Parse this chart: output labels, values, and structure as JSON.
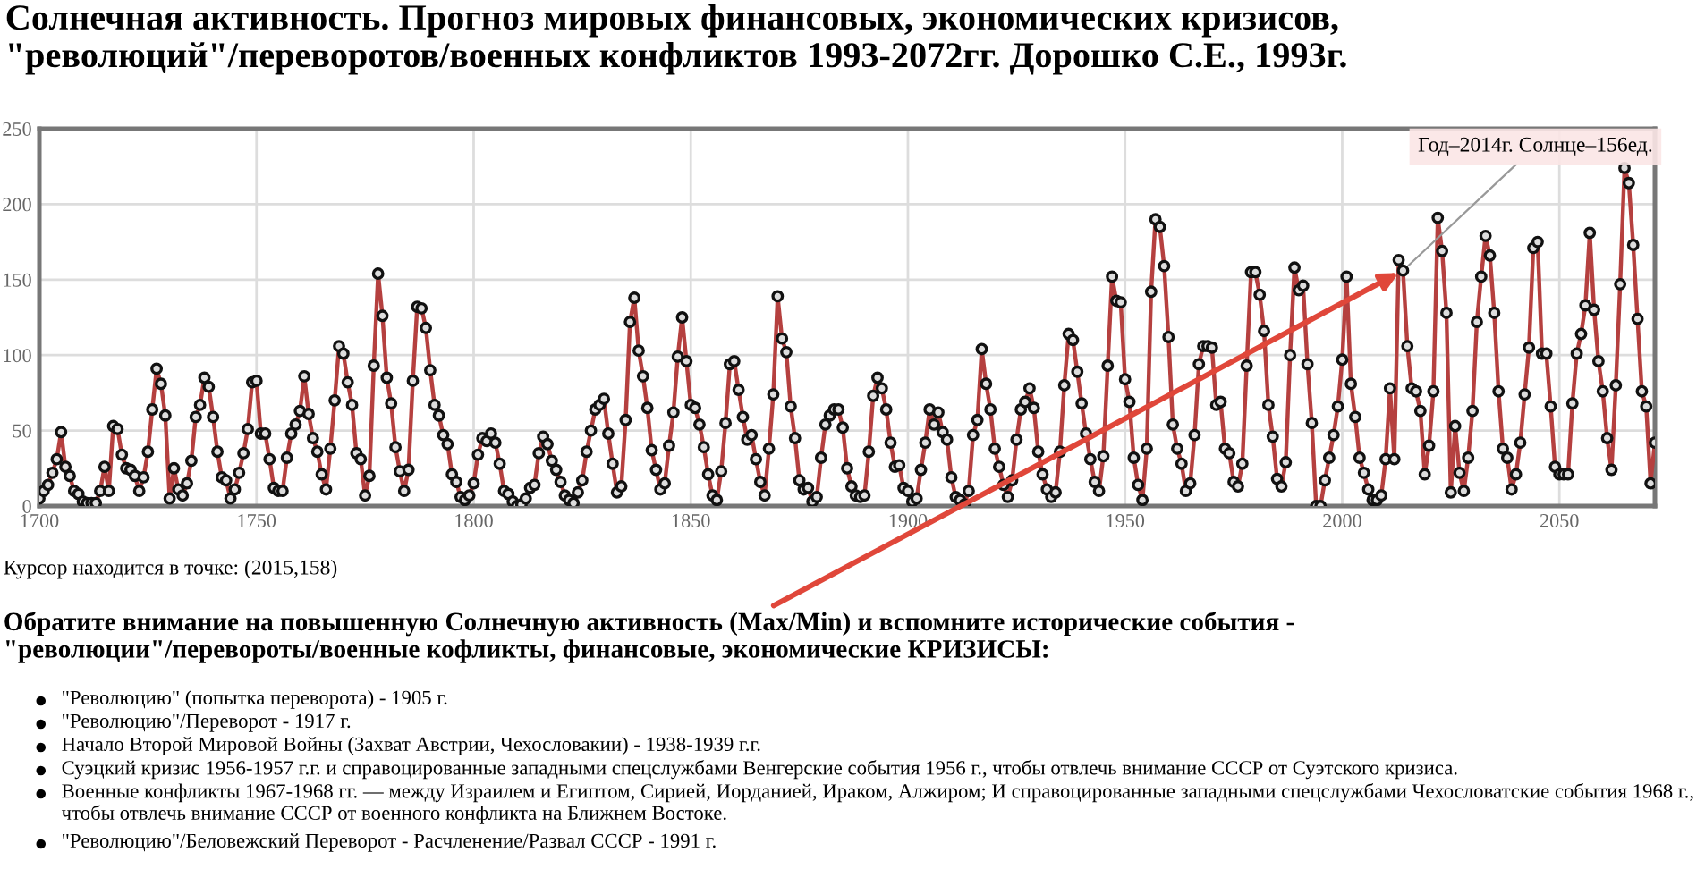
{
  "chart_data": {
    "type": "line",
    "title": "Солнечная активность. Прогноз мировых финансовых, экономических кризисов, \"революций\"/переворотов/военных конфликтов 1993-2072гг. Дорошко С.Е., 1993г.",
    "x": [
      1700,
      1701,
      1702,
      1703,
      1704,
      1705,
      1706,
      1707,
      1708,
      1709,
      1710,
      1711,
      1712,
      1713,
      1714,
      1715,
      1716,
      1717,
      1718,
      1719,
      1720,
      1721,
      1722,
      1723,
      1724,
      1725,
      1726,
      1727,
      1728,
      1729,
      1730,
      1731,
      1732,
      1733,
      1734,
      1735,
      1736,
      1737,
      1738,
      1739,
      1740,
      1741,
      1742,
      1743,
      1744,
      1745,
      1746,
      1747,
      1748,
      1749,
      1750,
      1751,
      1752,
      1753,
      1754,
      1755,
      1756,
      1757,
      1758,
      1759,
      1760,
      1761,
      1762,
      1763,
      1764,
      1765,
      1766,
      1767,
      1768,
      1769,
      1770,
      1771,
      1772,
      1773,
      1774,
      1775,
      1776,
      1777,
      1778,
      1779,
      1780,
      1781,
      1782,
      1783,
      1784,
      1785,
      1786,
      1787,
      1788,
      1789,
      1790,
      1791,
      1792,
      1793,
      1794,
      1795,
      1796,
      1797,
      1798,
      1799,
      1800,
      1801,
      1802,
      1803,
      1804,
      1805,
      1806,
      1807,
      1808,
      1809,
      1810,
      1811,
      1812,
      1813,
      1814,
      1815,
      1816,
      1817,
      1818,
      1819,
      1820,
      1821,
      1822,
      1823,
      1824,
      1825,
      1826,
      1827,
      1828,
      1829,
      1830,
      1831,
      1832,
      1833,
      1834,
      1835,
      1836,
      1837,
      1838,
      1839,
      1840,
      1841,
      1842,
      1843,
      1844,
      1845,
      1846,
      1847,
      1848,
      1849,
      1850,
      1851,
      1852,
      1853,
      1854,
      1855,
      1856,
      1857,
      1858,
      1859,
      1860,
      1861,
      1862,
      1863,
      1864,
      1865,
      1866,
      1867,
      1868,
      1869,
      1870,
      1871,
      1872,
      1873,
      1874,
      1875,
      1876,
      1877,
      1878,
      1879,
      1880,
      1881,
      1882,
      1883,
      1884,
      1885,
      1886,
      1887,
      1888,
      1889,
      1890,
      1891,
      1892,
      1893,
      1894,
      1895,
      1896,
      1897,
      1898,
      1899,
      1900,
      1901,
      1902,
      1903,
      1904,
      1905,
      1906,
      1907,
      1908,
      1909,
      1910,
      1911,
      1912,
      1913,
      1914,
      1915,
      1916,
      1917,
      1918,
      1919,
      1920,
      1921,
      1922,
      1923,
      1924,
      1925,
      1926,
      1927,
      1928,
      1929,
      1930,
      1931,
      1932,
      1933,
      1934,
      1935,
      1936,
      1937,
      1938,
      1939,
      1940,
      1941,
      1942,
      1943,
      1944,
      1945,
      1946,
      1947,
      1948,
      1949,
      1950,
      1951,
      1952,
      1953,
      1954,
      1955,
      1956,
      1957,
      1958,
      1959,
      1960,
      1961,
      1962,
      1963,
      1964,
      1965,
      1966,
      1967,
      1968,
      1969,
      1970,
      1971,
      1972,
      1973,
      1974,
      1975,
      1976,
      1977,
      1978,
      1979,
      1980,
      1981,
      1982,
      1983,
      1984,
      1985,
      1986,
      1987,
      1988,
      1989,
      1990,
      1991,
      1992,
      1993,
      1994,
      1995,
      1996,
      1997,
      1998,
      1999,
      2000,
      2001,
      2002,
      2003,
      2004,
      2005,
      2006,
      2007,
      2008,
      2009,
      2010,
      2011,
      2012,
      2013,
      2014,
      2015,
      2016,
      2017,
      2018,
      2019,
      2020,
      2021,
      2022,
      2023,
      2024,
      2025,
      2026,
      2027,
      2028,
      2029,
      2030,
      2031,
      2032,
      2033,
      2034,
      2035,
      2036,
      2037,
      2038,
      2039,
      2040,
      2041,
      2042,
      2043,
      2044,
      2045,
      2046,
      2047,
      2048,
      2049,
      2050,
      2051,
      2052,
      2053,
      2054,
      2055,
      2056,
      2057,
      2058,
      2059,
      2060,
      2061,
      2062,
      2063,
      2064,
      2065,
      2066,
      2067,
      2068,
      2069,
      2070,
      2071,
      2072
    ],
    "series": [
      {
        "color": "#b5403f",
        "values": [
          5,
          10,
          14,
          22,
          31,
          49,
          26,
          20,
          10,
          8,
          3,
          2,
          2,
          2,
          10,
          26,
          10,
          53,
          51,
          34,
          25,
          24,
          20,
          10,
          19,
          36,
          64,
          91,
          81,
          60,
          5,
          25,
          11,
          7,
          15,
          30,
          59,
          67,
          85,
          79,
          59,
          36,
          19,
          17,
          5,
          11,
          22,
          35,
          51,
          82,
          83,
          48,
          48,
          31,
          12,
          10,
          10,
          32,
          48,
          54,
          63,
          86,
          61,
          45,
          36,
          21,
          11,
          38,
          70,
          106,
          101,
          82,
          67,
          35,
          31,
          7,
          20,
          93,
          154,
          126,
          85,
          68,
          39,
          23,
          10,
          24,
          83,
          132,
          131,
          118,
          90,
          67,
          60,
          47,
          41,
          21,
          16,
          6,
          4,
          7,
          15,
          34,
          45,
          43,
          48,
          42,
          28,
          10,
          8,
          3,
          0,
          1,
          5,
          12,
          14,
          35,
          46,
          41,
          30,
          24,
          16,
          7,
          4,
          2,
          9,
          17,
          36,
          50,
          64,
          67,
          71,
          48,
          28,
          9,
          13,
          57,
          122,
          138,
          103,
          86,
          65,
          37,
          24,
          11,
          15,
          40,
          62,
          99,
          125,
          96,
          67,
          65,
          54,
          39,
          21,
          7,
          4,
          23,
          55,
          94,
          96,
          77,
          59,
          44,
          47,
          31,
          16,
          7,
          38,
          74,
          139,
          111,
          102,
          66,
          45,
          17,
          11,
          12,
          3,
          6,
          32,
          54,
          60,
          64,
          64,
          52,
          25,
          13,
          7,
          6,
          7,
          36,
          73,
          85,
          78,
          64,
          42,
          26,
          27,
          12,
          10,
          3,
          5,
          24,
          42,
          64,
          54,
          62,
          49,
          44,
          19,
          6,
          4,
          1,
          10,
          47,
          57,
          104,
          81,
          64,
          38,
          26,
          14,
          6,
          17,
          44,
          64,
          69,
          78,
          65,
          36,
          21,
          11,
          6,
          9,
          36,
          80,
          114,
          110,
          89,
          68,
          48,
          31,
          16,
          10,
          33,
          93,
          152,
          136,
          135,
          84,
          69,
          32,
          14,
          4,
          38,
          142,
          190,
          185,
          159,
          112,
          54,
          38,
          28,
          10,
          15,
          47,
          94,
          106,
          106,
          105,
          67,
          69,
          38,
          35,
          16,
          13,
          28,
          93,
          155,
          155,
          140,
          116,
          67,
          46,
          18,
          13,
          29,
          100,
          158,
          143,
          146,
          94,
          55,
          0,
          0,
          17,
          32,
          47,
          66,
          97,
          152,
          81,
          59,
          32,
          22,
          11,
          4,
          4,
          7,
          31,
          78,
          31,
          163,
          156,
          106,
          78,
          76,
          63,
          21,
          40,
          76,
          191,
          169,
          128,
          9,
          53,
          22,
          10,
          32,
          63,
          122,
          152,
          179,
          166,
          128,
          76,
          38,
          32,
          11,
          21,
          42,
          74,
          105,
          171,
          175,
          101,
          101,
          66,
          26,
          21,
          21,
          21,
          68,
          101,
          114,
          133,
          181,
          130,
          96,
          76,
          45,
          24,
          80,
          147,
          224,
          214,
          173,
          124,
          76,
          66,
          15,
          42
        ]
      }
    ],
    "xlim": [
      1700,
      2072
    ],
    "ylim": [
      0,
      250
    ],
    "xticks": [
      1700,
      1750,
      1800,
      1850,
      1900,
      1950,
      2000,
      2050
    ],
    "yticks": [
      0,
      50,
      100,
      150,
      200,
      250
    ],
    "grid": true,
    "marker": "circle",
    "line_style": "solid",
    "annotations": [
      {
        "text": "Год–2014г. Солнце–156ед.",
        "x": 2014,
        "y": 156
      },
      "Курсор находится в точке: (2015,158)",
      "Обратите внимание на повышенную Солнечную активность (Max/Min) и вспомните исторические события - \"революции\"/перевороты/военные кофликты, финансовые, экономические КРИЗИСЫ:",
      "\"Революцию\" (попытка переворота) - 1905 г.",
      "\"Революцию\"/Переворот - 1917 г.",
      "Начало Второй Мировой Войны (Захват Австрии, Чехословакии) - 1938-1939 г.г.",
      "Суэцкий кризис 1956-1957 г.г. и справоцированные западными спецслужбами Венгерские события 1956 г., чтобы отвлечь внимание СССР от Суэтского кризиса.",
      "Военные конфликты 1967-1968 гг. — между Израилем и Египтом, Сирией, Иорданией, Ираком, Алжиром; И справоцированные западными спецслужбами Чехословатские события 1968 г., чтобы отвлечь внимание СССР от военного конфликта на Ближнем Востоке.",
      "\"Революцию\"/Беловежский Переворот - Расчленение/Развал СССР - 1991 г."
    ]
  }
}
